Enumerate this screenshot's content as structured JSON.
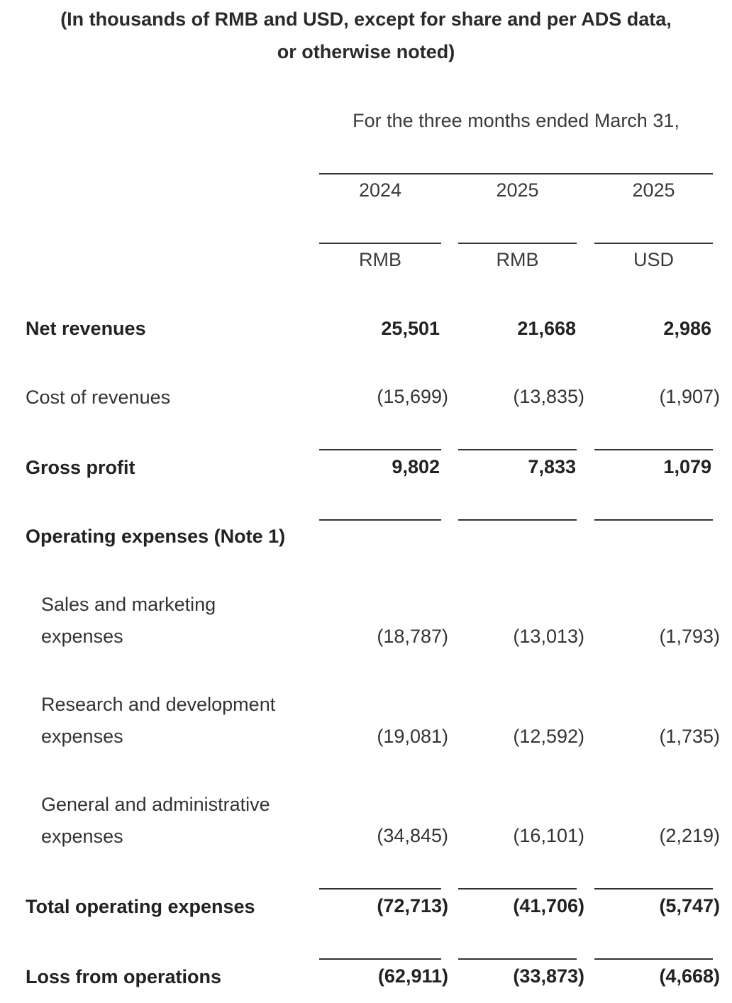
{
  "heading": {
    "line1": "(In thousands of RMB and USD, except for share and per ADS data,",
    "line2": "or otherwise noted)"
  },
  "period_header": "For the three months ended March 31,",
  "columns": [
    {
      "year": "2024",
      "currency": "RMB"
    },
    {
      "year": "2025",
      "currency": "RMB"
    },
    {
      "year": "2025",
      "currency": "USD"
    }
  ],
  "rows": {
    "net_revenues": {
      "label": "Net revenues",
      "values": [
        "25,501",
        "21,668",
        "2,986"
      ]
    },
    "cost_of_revenues": {
      "label": "Cost of revenues",
      "values": [
        "(15,699)",
        "(13,835)",
        "(1,907)"
      ]
    },
    "gross_profit": {
      "label": "Gross profit",
      "values": [
        "9,802",
        "7,833",
        "1,079"
      ]
    },
    "operating_expenses": {
      "label": "Operating expenses (Note 1)"
    },
    "sales_marketing": {
      "label_line1": "Sales and marketing",
      "label_line2": "expenses",
      "values": [
        "(18,787)",
        "(13,013)",
        "(1,793)"
      ]
    },
    "research_development": {
      "label_line1": "Research and development",
      "label_line2": "expenses",
      "values": [
        "(19,081)",
        "(12,592)",
        "(1,735)"
      ]
    },
    "general_admin": {
      "label_line1": "General and administrative",
      "label_line2": "expenses",
      "values": [
        "(34,845)",
        "(16,101)",
        "(2,219)"
      ]
    },
    "total_operating_expenses": {
      "label": "Total operating expenses",
      "values": [
        "(72,713)",
        "(41,706)",
        "(5,747)"
      ]
    },
    "loss_from_operations": {
      "label": "Loss from operations",
      "values": [
        "(62,911)",
        "(33,873)",
        "(4,668)"
      ]
    }
  }
}
